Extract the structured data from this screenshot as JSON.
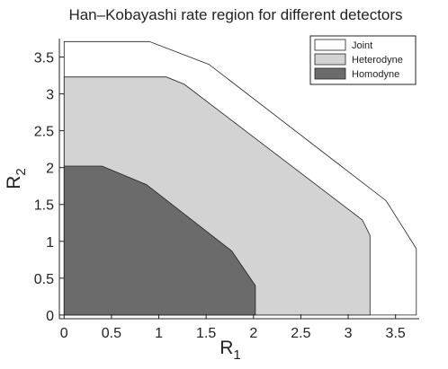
{
  "chart_data": {
    "type": "area",
    "title": "Han–Kobayashi rate region for different detectors",
    "xlabel": "R",
    "xlabel_sub": "1",
    "ylabel": "R",
    "ylabel_sub": "2",
    "xlim": [
      -0.05,
      3.75
    ],
    "ylim": [
      -0.05,
      3.75
    ],
    "xticks": [
      "0",
      "0.5",
      "1",
      "1.5",
      "2",
      "2.5",
      "3",
      "3.5"
    ],
    "xtick_values": [
      0,
      0.5,
      1,
      1.5,
      2,
      2.5,
      3,
      3.5
    ],
    "yticks": [
      "0",
      "0.5",
      "1",
      "1.5",
      "2",
      "2.5",
      "3",
      "3.5"
    ],
    "ytick_values": [
      0,
      0.5,
      1,
      1.5,
      2,
      2.5,
      3,
      3.5
    ],
    "grid": false,
    "legend_position": "top-right",
    "series": [
      {
        "name": "Joint",
        "color": "#ffffff",
        "points": [
          [
            0,
            0
          ],
          [
            0,
            3.71
          ],
          [
            0.9,
            3.71
          ],
          [
            1.53,
            3.4
          ],
          [
            3.4,
            1.55
          ],
          [
            3.72,
            0.9
          ],
          [
            3.72,
            0
          ]
        ]
      },
      {
        "name": "Heterodyne",
        "color": "#d3d3d3",
        "points": [
          [
            0,
            0
          ],
          [
            0,
            3.23
          ],
          [
            1.08,
            3.23
          ],
          [
            1.27,
            3.13
          ],
          [
            3.15,
            1.29
          ],
          [
            3.23,
            1.08
          ],
          [
            3.23,
            0
          ]
        ]
      },
      {
        "name": "Homodyne",
        "color": "#6b6b6b",
        "points": [
          [
            0,
            0
          ],
          [
            0,
            2.02
          ],
          [
            0.4,
            2.02
          ],
          [
            0.87,
            1.77
          ],
          [
            1.77,
            0.87
          ],
          [
            2.02,
            0.4
          ],
          [
            2.02,
            0
          ]
        ]
      }
    ]
  }
}
